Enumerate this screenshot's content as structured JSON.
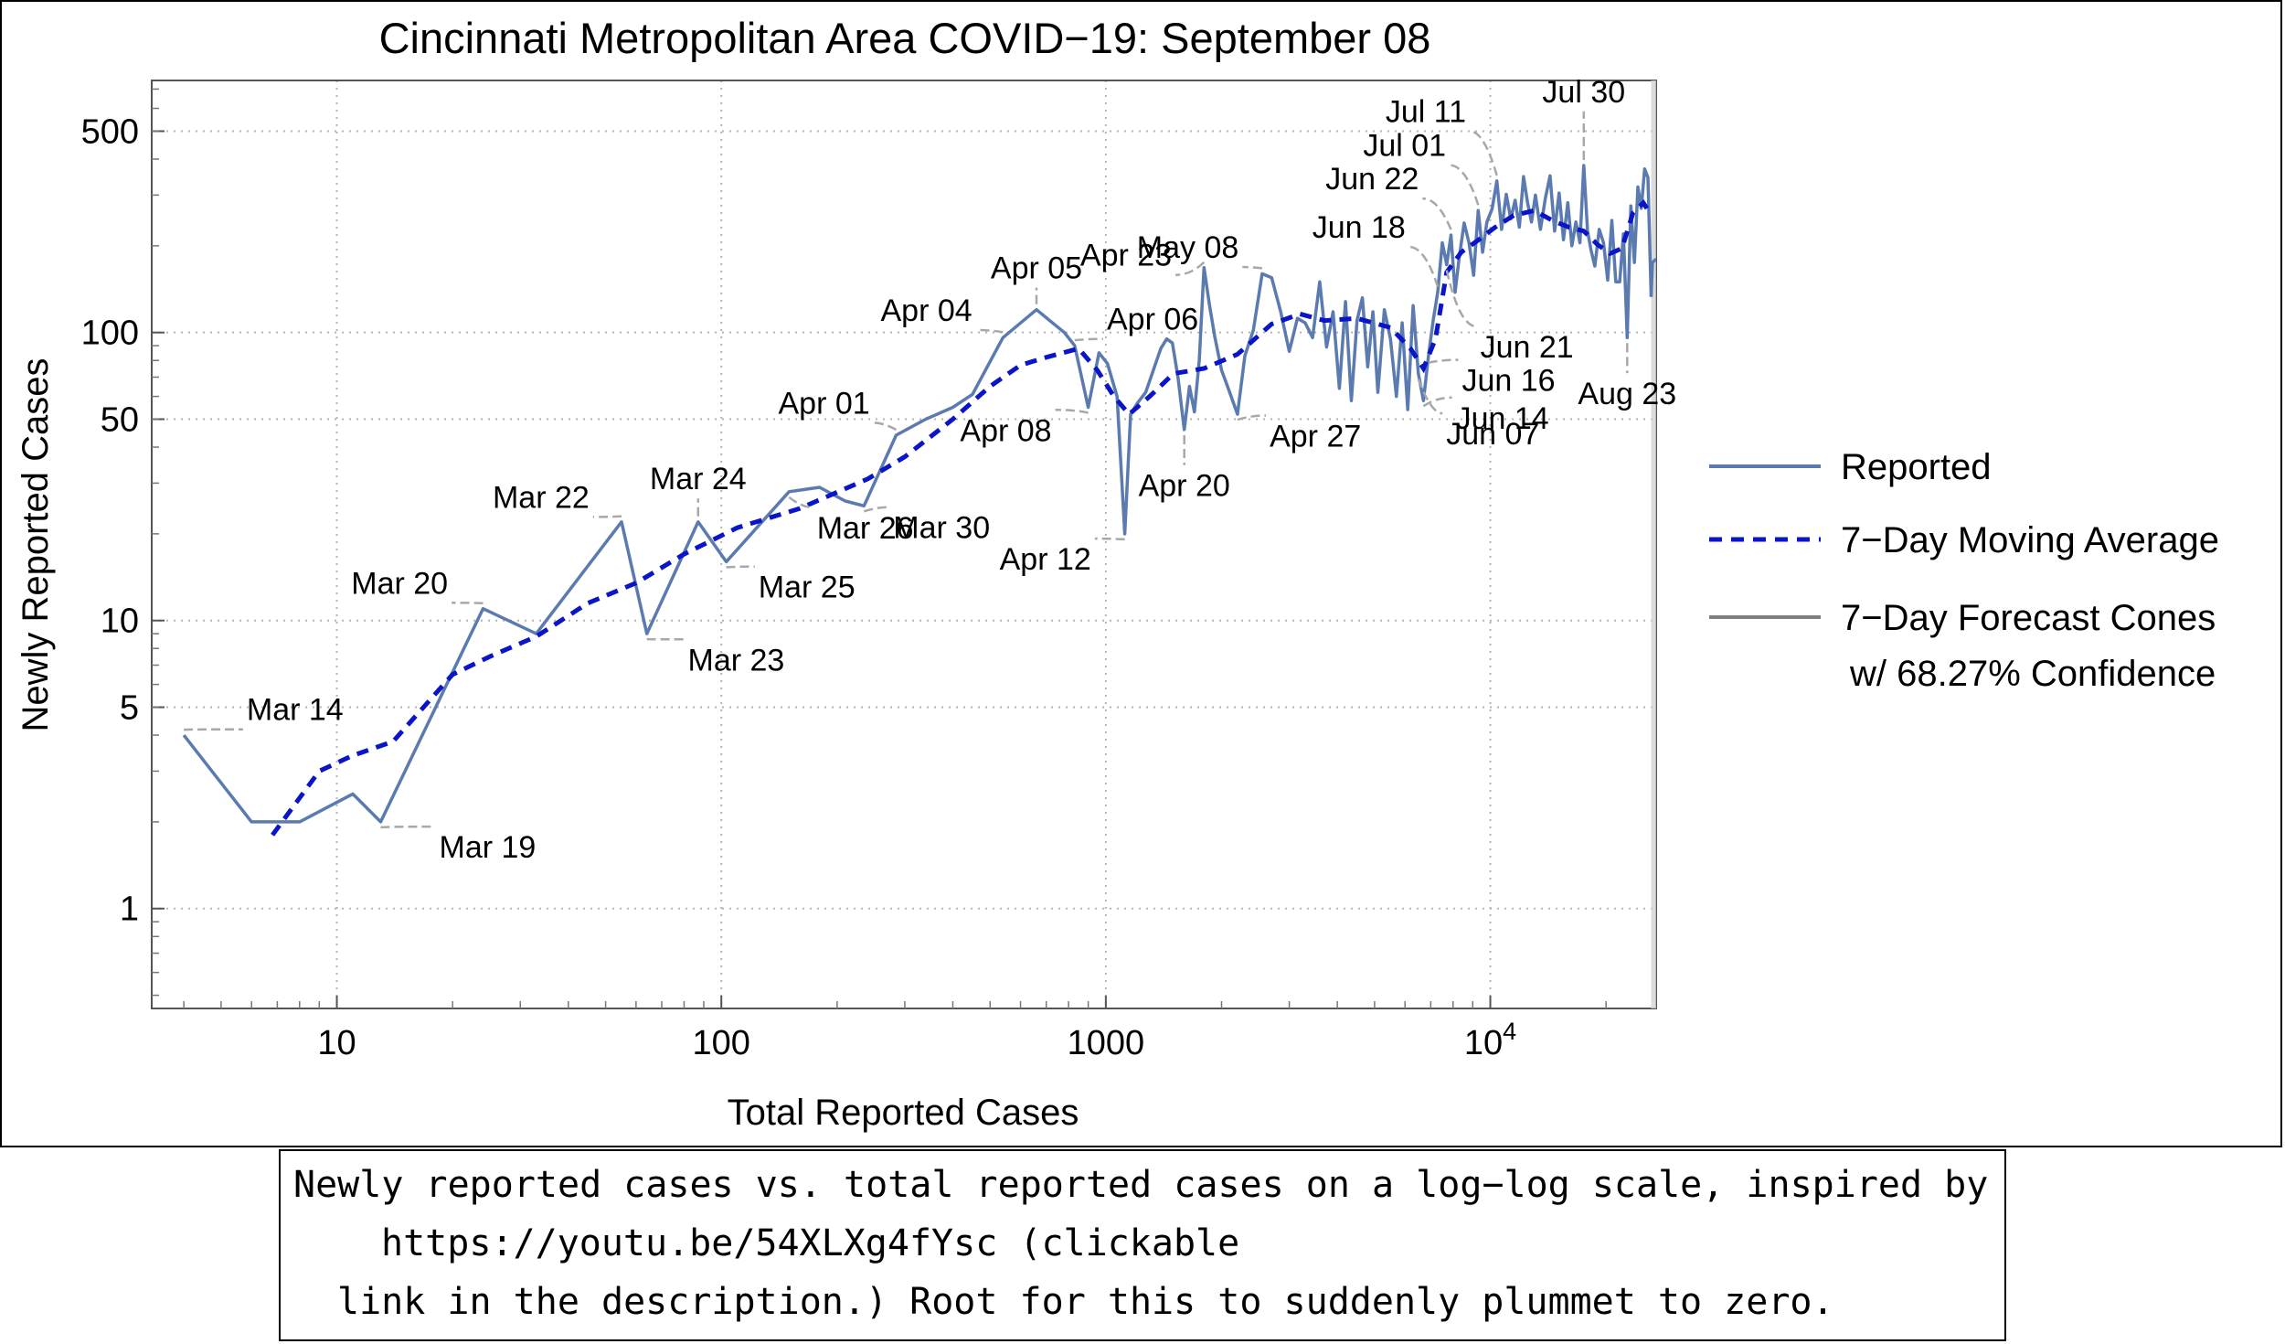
{
  "chart_data": {
    "type": "line",
    "scale": "log-log",
    "title": "Cincinnati Metropolitan Area COVID−19: September 08",
    "xlabel": "Total Reported Cases",
    "ylabel": "Newly Reported Cases",
    "xlim": [
      3.3,
      27000
    ],
    "ylim": [
      0.45,
      750
    ],
    "x_ticks": [
      {
        "value": 10,
        "label": "10"
      },
      {
        "value": 100,
        "label": "100"
      },
      {
        "value": 1000,
        "label": "1000"
      },
      {
        "value": 10000,
        "label": "10",
        "exponent": "4"
      }
    ],
    "y_ticks": [
      {
        "value": 1,
        "label": "1"
      },
      {
        "value": 5,
        "label": "5"
      },
      {
        "value": 10,
        "label": "10"
      },
      {
        "value": 50,
        "label": "50"
      },
      {
        "value": 100,
        "label": "100"
      },
      {
        "value": 500,
        "label": "500"
      }
    ],
    "x_gridlines": [
      10,
      100,
      1000,
      10000
    ],
    "y_gridlines": [
      1,
      5,
      10,
      50,
      100,
      500
    ],
    "colors": {
      "reported": "#5b7bb0",
      "moving_average": "#0a14c8",
      "forecast": "#7f7f7f",
      "callout": "#a8a8a8",
      "grid": "#b4b4b4"
    },
    "series": [
      {
        "name": "Reported",
        "style": "solid",
        "points": [
          [
            4,
            4
          ],
          [
            6,
            2
          ],
          [
            8,
            2
          ],
          [
            11,
            2.5
          ],
          [
            13,
            2
          ],
          [
            24,
            11
          ],
          [
            33,
            9
          ],
          [
            55,
            22
          ],
          [
            64,
            9
          ],
          [
            87,
            22
          ],
          [
            103,
            16
          ],
          [
            150,
            28
          ],
          [
            180,
            29
          ],
          [
            210,
            26
          ],
          [
            235,
            25
          ],
          [
            285,
            44
          ],
          [
            340,
            50
          ],
          [
            400,
            55
          ],
          [
            450,
            61
          ],
          [
            540,
            96
          ],
          [
            660,
            120
          ],
          [
            780,
            100
          ],
          [
            830,
            90
          ],
          [
            900,
            55
          ],
          [
            960,
            85
          ],
          [
            1010,
            78
          ],
          [
            1070,
            60
          ],
          [
            1120,
            20
          ],
          [
            1160,
            52
          ],
          [
            1210,
            57
          ],
          [
            1270,
            62
          ],
          [
            1320,
            72
          ],
          [
            1390,
            88
          ],
          [
            1440,
            95
          ],
          [
            1490,
            92
          ],
          [
            1540,
            70
          ],
          [
            1600,
            46
          ],
          [
            1650,
            65
          ],
          [
            1700,
            53
          ],
          [
            1750,
            80
          ],
          [
            1800,
            168
          ],
          [
            1860,
            125
          ],
          [
            1920,
            97
          ],
          [
            2000,
            74
          ],
          [
            2100,
            62
          ],
          [
            2200,
            52
          ],
          [
            2300,
            83
          ],
          [
            2420,
            102
          ],
          [
            2550,
            160
          ],
          [
            2700,
            155
          ],
          [
            2850,
            118
          ],
          [
            3000,
            86
          ],
          [
            3150,
            112
          ],
          [
            3300,
            108
          ],
          [
            3450,
            96
          ],
          [
            3600,
            150
          ],
          [
            3750,
            89
          ],
          [
            3900,
            118
          ],
          [
            4050,
            64
          ],
          [
            4200,
            128
          ],
          [
            4350,
            58
          ],
          [
            4500,
            110
          ],
          [
            4650,
            132
          ],
          [
            4800,
            76
          ],
          [
            4950,
            118
          ],
          [
            5100,
            62
          ],
          [
            5300,
            120
          ],
          [
            5500,
            95
          ],
          [
            5700,
            60
          ],
          [
            5900,
            108
          ],
          [
            6100,
            54
          ],
          [
            6300,
            124
          ],
          [
            6500,
            72
          ],
          [
            6700,
            58
          ],
          [
            6900,
            82
          ],
          [
            7100,
            110
          ],
          [
            7300,
            138
          ],
          [
            7500,
            205
          ],
          [
            7700,
            172
          ],
          [
            7900,
            218
          ],
          [
            8100,
            138
          ],
          [
            8300,
            182
          ],
          [
            8550,
            240
          ],
          [
            8800,
            205
          ],
          [
            9050,
            158
          ],
          [
            9300,
            265
          ],
          [
            9550,
            190
          ],
          [
            9800,
            242
          ],
          [
            10100,
            268
          ],
          [
            10400,
            336
          ],
          [
            10700,
            228
          ],
          [
            11000,
            302
          ],
          [
            11300,
            248
          ],
          [
            11600,
            288
          ],
          [
            11900,
            232
          ],
          [
            12200,
            348
          ],
          [
            12500,
            282
          ],
          [
            12800,
            242
          ],
          [
            13100,
            300
          ],
          [
            13500,
            228
          ],
          [
            13900,
            292
          ],
          [
            14300,
            350
          ],
          [
            14700,
            225
          ],
          [
            15100,
            305
          ],
          [
            15500,
            210
          ],
          [
            15900,
            282
          ],
          [
            16300,
            200
          ],
          [
            16700,
            242
          ],
          [
            17100,
            205
          ],
          [
            17500,
            380
          ],
          [
            17900,
            225
          ],
          [
            18300,
            192
          ],
          [
            18700,
            170
          ],
          [
            19200,
            228
          ],
          [
            19700,
            205
          ],
          [
            20200,
            152
          ],
          [
            20700,
            245
          ],
          [
            21200,
            150
          ],
          [
            21700,
            150
          ],
          [
            22200,
            220
          ],
          [
            22700,
            96
          ],
          [
            23200,
            275
          ],
          [
            23700,
            175
          ],
          [
            24200,
            320
          ],
          [
            24700,
            270
          ],
          [
            25200,
            370
          ],
          [
            25700,
            345
          ],
          [
            26200,
            133
          ]
        ]
      },
      {
        "name": "7-Day Moving Average",
        "style": "dashed",
        "points": [
          [
            6.8,
            1.8
          ],
          [
            9,
            3
          ],
          [
            11,
            3.4
          ],
          [
            14,
            3.8
          ],
          [
            20,
            6.5
          ],
          [
            25,
            7.5
          ],
          [
            33,
            8.8
          ],
          [
            45,
            11.5
          ],
          [
            60,
            13.5
          ],
          [
            80,
            17
          ],
          [
            110,
            21
          ],
          [
            160,
            24.5
          ],
          [
            240,
            31
          ],
          [
            300,
            37
          ],
          [
            400,
            50
          ],
          [
            500,
            65
          ],
          [
            600,
            77
          ],
          [
            700,
            82
          ],
          [
            850,
            88
          ],
          [
            950,
            74
          ],
          [
            1050,
            60
          ],
          [
            1150,
            52
          ],
          [
            1300,
            60
          ],
          [
            1500,
            72
          ],
          [
            1800,
            75
          ],
          [
            2200,
            84
          ],
          [
            2700,
            107
          ],
          [
            3200,
            116
          ],
          [
            3700,
            110
          ],
          [
            4500,
            112
          ],
          [
            5500,
            104
          ],
          [
            6200,
            88
          ],
          [
            6700,
            75
          ],
          [
            7200,
            95
          ],
          [
            7700,
            162
          ],
          [
            8400,
            190
          ],
          [
            9200,
            207
          ],
          [
            10300,
            232
          ],
          [
            11500,
            255
          ],
          [
            13000,
            265
          ],
          [
            14500,
            245
          ],
          [
            16000,
            232
          ],
          [
            17500,
            225
          ],
          [
            19000,
            202
          ],
          [
            20500,
            188
          ],
          [
            22000,
            196
          ],
          [
            23500,
            260
          ],
          [
            25000,
            282
          ],
          [
            26000,
            260
          ]
        ]
      },
      {
        "name": "7-Day Forecast Cones",
        "style": "solid",
        "points": [
          [
            26200,
            133
          ],
          [
            26400,
            175
          ],
          [
            27000,
            180
          ]
        ]
      }
    ],
    "annotations": [
      {
        "label": "Mar 14",
        "x": 4,
        "y": 4,
        "side": "right",
        "lx": 3.3,
        "ly": 0.3
      },
      {
        "label": "Mar 19",
        "x": 13,
        "y": 2,
        "side": "right",
        "lx": 3.0,
        "ly": -0.4
      },
      {
        "label": "Mar 20",
        "x": 24,
        "y": 11,
        "side": "left",
        "lx": -1.4,
        "ly": 0.3
      },
      {
        "label": "Mar 22",
        "x": 55,
        "y": 22,
        "side": "left",
        "lx": -1.2,
        "ly": 0.28
      },
      {
        "label": "Mar 23",
        "x": 64,
        "y": 9,
        "side": "right",
        "lx": 1.8,
        "ly": -0.42
      },
      {
        "label": "Mar 24",
        "x": 87,
        "y": 22,
        "side": "center",
        "lx": 0,
        "ly": 0.7
      },
      {
        "label": "Mar 25",
        "x": 103,
        "y": 16,
        "side": "right",
        "lx": 1.2,
        "ly": -0.4
      },
      {
        "label": "Mar 26",
        "x": 150,
        "y": 28,
        "side": "right",
        "lx": 0.9,
        "ly": -0.65
      },
      {
        "label": "Mar 30",
        "x": 235,
        "y": 25,
        "side": "right",
        "lx": 1.0,
        "ly": -0.32
      },
      {
        "label": "Apr 01",
        "x": 285,
        "y": 44,
        "side": "left",
        "lx": -0.8,
        "ly": 0.45
      },
      {
        "label": "Apr 04",
        "x": 540,
        "y": 96,
        "side": "left",
        "lx": -1.1,
        "ly": 0.34
      },
      {
        "label": "Apr 05",
        "x": 660,
        "y": 120,
        "side": "center",
        "lx": 0,
        "ly": 0.67
      },
      {
        "label": "Apr 06",
        "x": 830,
        "y": 90,
        "side": "right",
        "lx": 1.2,
        "ly": 0.32
      },
      {
        "label": "Apr 08",
        "x": 900,
        "y": 55,
        "side": "left",
        "lx": -1.5,
        "ly": -0.35
      },
      {
        "label": "Apr 12",
        "x": 1120,
        "y": 20,
        "side": "left",
        "lx": -1.3,
        "ly": -0.4
      },
      {
        "label": "Apr 20",
        "x": 1600,
        "y": 46,
        "side": "center",
        "lx": 0,
        "ly": -1.1
      },
      {
        "label": "Apr 23",
        "x": 1800,
        "y": 168,
        "side": "left",
        "lx": -1.2,
        "ly": 0.0
      },
      {
        "label": "Apr 27",
        "x": 2200,
        "y": 52,
        "side": "right",
        "lx": 1.2,
        "ly": -0.32
      },
      {
        "label": "May 08",
        "x": 2550,
        "y": 160,
        "side": "left",
        "lx": -0.6,
        "ly": 0.32
      },
      {
        "label": "Jun 07",
        "x": 6500,
        "y": 72,
        "side": "right",
        "lx": 0.9,
        "ly": -1.2
      },
      {
        "label": "Jun 14",
        "x": 6700,
        "y": 58,
        "side": "right",
        "lx": 1.2,
        "ly": -0.22
      },
      {
        "label": "Jun 16",
        "x": 6900,
        "y": 82,
        "side": "right",
        "lx": 1.3,
        "ly": -0.35
      },
      {
        "label": "Jun 18",
        "x": 7300,
        "y": 138,
        "side": "left",
        "lx": -1.2,
        "ly": 1.2
      },
      {
        "label": "Jun 21",
        "x": 7700,
        "y": 172,
        "side": "right",
        "lx": 1.3,
        "ly": -1.7
      },
      {
        "label": "Jun 22",
        "x": 7900,
        "y": 218,
        "side": "left",
        "lx": -1.2,
        "ly": 1.0
      },
      {
        "label": "Jul 01",
        "x": 9300,
        "y": 265,
        "side": "left",
        "lx": -1.2,
        "ly": 1.2
      },
      {
        "label": "Jul 11",
        "x": 10400,
        "y": 336,
        "side": "left",
        "lx": -1.1,
        "ly": 1.3
      },
      {
        "label": "Jul 30",
        "x": 17500,
        "y": 380,
        "side": "center",
        "lx": 0,
        "ly": 1.4
      },
      {
        "label": "Aug 23",
        "x": 22700,
        "y": 96,
        "side": "center",
        "lx": 0,
        "ly": -1.1
      }
    ],
    "legend": {
      "placement": "right",
      "entries": [
        {
          "label": "Reported",
          "style": "solid",
          "color": "#5b7bb0"
        },
        {
          "label": "7−Day Moving Average",
          "style": "dashed",
          "color": "#0a14c8"
        },
        {
          "label": "7−Day Forecast Cones",
          "label2": "w/ 68.27% Confidence",
          "style": "solid",
          "color": "#7f7f7f"
        }
      ]
    }
  },
  "caption": {
    "line1": "Newly reported cases vs. total reported cases on a log−log scale, inspired by",
    "line2": "https://youtu.be/54XLXg4fYsc (clickable",
    "line3": "link in the description.) Root for this to suddenly plummet to zero."
  }
}
